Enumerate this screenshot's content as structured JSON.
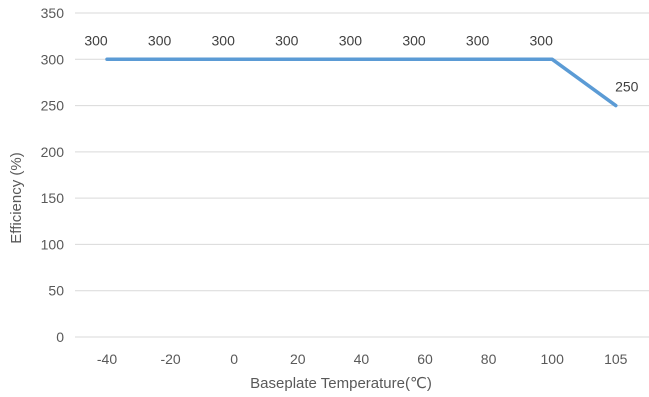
{
  "chart_data": {
    "type": "line",
    "title": "",
    "xlabel": "Baseplate Temperature(℃)",
    "ylabel": "Efficiency (%)",
    "categories": [
      "-40",
      "-20",
      "0",
      "20",
      "40",
      "60",
      "80",
      "100",
      "105"
    ],
    "series": [
      {
        "values": [
          300,
          300,
          300,
          300,
          300,
          300,
          300,
          300,
          250
        ],
        "color": "#5b9bd5",
        "data_labels": true
      }
    ],
    "ylim": [
      0,
      350
    ],
    "yticks": [
      0,
      50,
      100,
      150,
      200,
      250,
      300,
      350
    ],
    "grid": "horizontal",
    "legend": "none",
    "colors": {
      "line": "#5b9bd5",
      "grid": "#d9d9d9",
      "text": "#595959"
    }
  }
}
